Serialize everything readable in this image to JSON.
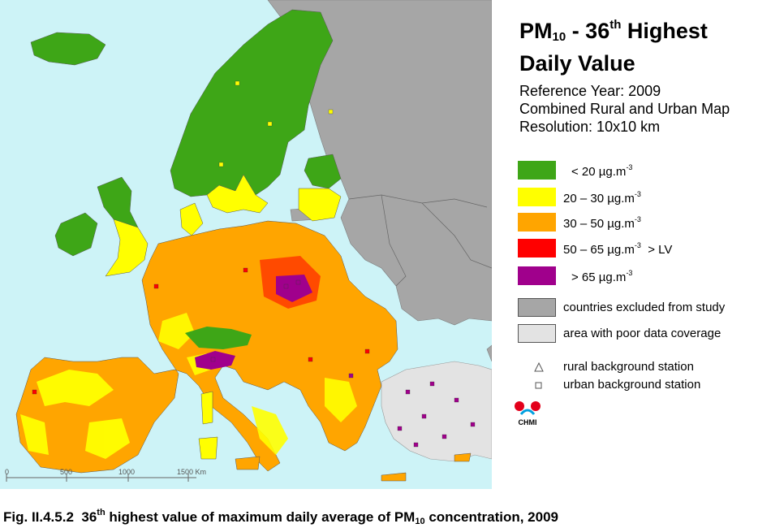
{
  "title": {
    "line1_pre": "PM",
    "line1_sub": "10",
    "line1_mid": " - 36",
    "line1_sup": "th",
    "line1_post": " Highest",
    "line2": "Daily Value"
  },
  "meta": [
    "Reference Year: 2009",
    "Combined Rural and Urban Map",
    "Resolution: 10x10 km"
  ],
  "legend": [
    {
      "color": "#3ea617",
      "label": "<  20  µg.m",
      "exp": "-3",
      "suffix": ""
    },
    {
      "color": "#ffff00",
      "label": "20 – 30  µg.m",
      "exp": "-3",
      "suffix": ""
    },
    {
      "color": "#ffa500",
      "label": "30 – 50  µg.m",
      "exp": "-3",
      "suffix": ""
    },
    {
      "color": "#ff0000",
      "label": "50 – 65  µg.m",
      "exp": "-3",
      "suffix": "  > LV"
    },
    {
      "color": "#a0008c",
      "label": ">  65  µg.m",
      "exp": "-3",
      "suffix": ""
    },
    {
      "color": "#a6a6a6",
      "label": "countries excluded from study",
      "exp": "",
      "suffix": ""
    },
    {
      "color": "#e3e3e3",
      "label": "area with poor data coverage",
      "exp": "",
      "suffix": ""
    }
  ],
  "stations": [
    {
      "symbol": "triangle-icon",
      "label": "rural background station"
    },
    {
      "symbol": "square-icon",
      "label": "urban background station"
    }
  ],
  "logo_text": "CHMI",
  "scale": {
    "labels": [
      "0",
      "500",
      "1000",
      "1500 Km"
    ]
  },
  "caption": {
    "pre": "Fig. II.4.5.2  36",
    "sup": "th",
    "mid": " highest value of maximum daily average of PM",
    "sub": "10",
    "post": " concentration, 2009"
  },
  "colors": {
    "sea": "#cdf3f7",
    "excluded": "#a6a6a6",
    "poor": "#e3e3e3",
    "green": "#3ea617",
    "yellow": "#ffff00",
    "orange": "#ffa500",
    "red": "#ff0000",
    "purple": "#a0008c"
  }
}
